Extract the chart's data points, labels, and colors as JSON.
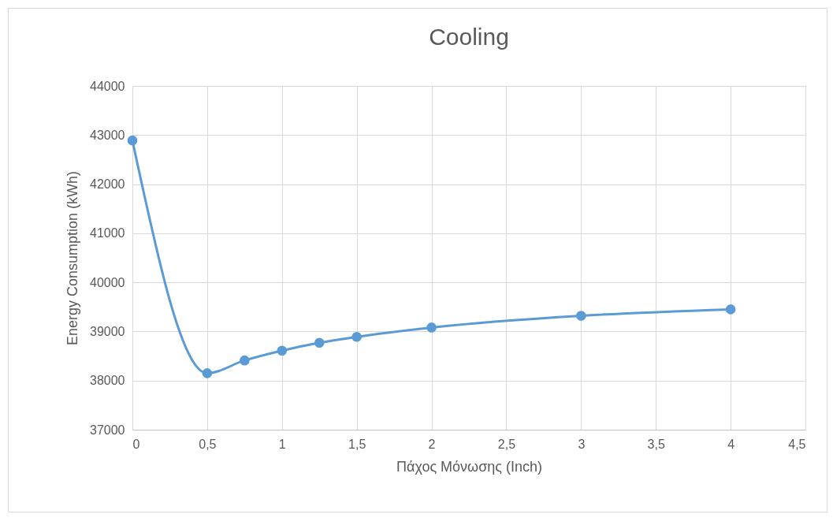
{
  "chart_data": {
    "type": "line",
    "title": "Cooling",
    "xlabel": "Πάχος Μόνωσης (Inch)",
    "ylabel": "Energy Consumption (kWh)",
    "x": [
      0,
      0.5,
      0.75,
      1,
      1.25,
      1.5,
      2,
      3,
      4
    ],
    "series": [
      {
        "color": "#5b9bd5",
        "values": [
          42890,
          38150,
          38410,
          38610,
          38770,
          38890,
          39080,
          39320,
          39450
        ]
      }
    ],
    "xlim": [
      0,
      4.5
    ],
    "xticks": [
      0,
      {
        "value": 0.5,
        "label": "0,5"
      },
      1,
      {
        "value": 1.5,
        "label": "1,5"
      },
      2,
      {
        "value": 2.5,
        "label": "2,5"
      },
      3,
      {
        "value": 3.5,
        "label": "3,5"
      },
      4,
      {
        "value": 4.5,
        "label": "4,5"
      }
    ],
    "ylim": [
      37000,
      44000
    ],
    "yticks": [
      37000,
      38000,
      39000,
      40000,
      41000,
      42000,
      43000,
      44000
    ],
    "grid": true,
    "marker": "circle",
    "line_style": "solid"
  }
}
